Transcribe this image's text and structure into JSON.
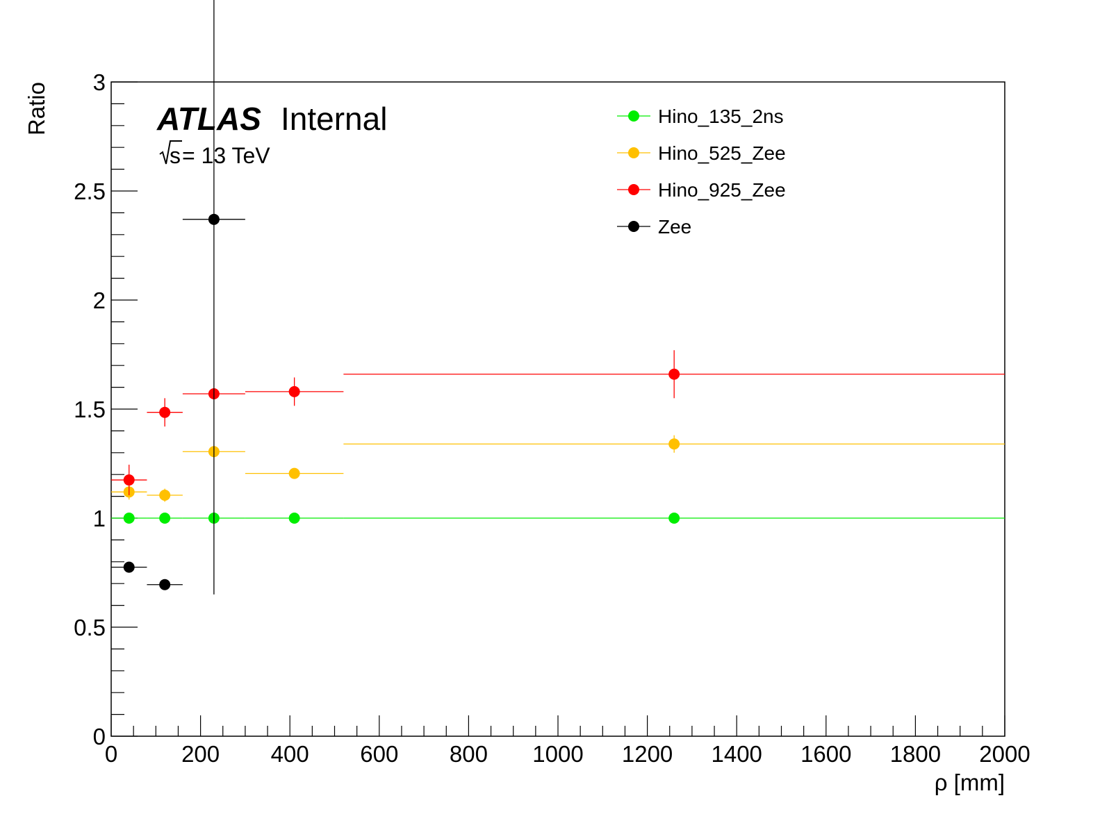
{
  "chart_data": {
    "type": "scatter",
    "xlabel": "ρ [mm]",
    "ylabel": "Ratio",
    "xlim": [
      0,
      2000
    ],
    "ylim": [
      0,
      3
    ],
    "x_ticks": [
      "0",
      "200",
      "400",
      "600",
      "800",
      "1000",
      "1200",
      "1400",
      "1600",
      "1800",
      "2000"
    ],
    "y_ticks": [
      "0",
      "0.5",
      "1",
      "1.5",
      "2",
      "2.5",
      "3"
    ],
    "grid": false,
    "legend_position": "top-right",
    "annotations": {
      "experiment": "ATLAS",
      "status": "Internal",
      "energy_sqrt": "s",
      "energy_rest": " = 13 TeV"
    },
    "series": [
      {
        "name": "Hino_135_2ns",
        "color": "#00ee00",
        "points": [
          {
            "x": 40,
            "xlo": 0,
            "xhi": 80,
            "y": 1.0,
            "yerr": 0.0
          },
          {
            "x": 120,
            "xlo": 80,
            "xhi": 160,
            "y": 1.0,
            "yerr": 0.0
          },
          {
            "x": 230,
            "xlo": 160,
            "xhi": 300,
            "y": 1.0,
            "yerr": 0.0
          },
          {
            "x": 410,
            "xlo": 300,
            "xhi": 520,
            "y": 1.0,
            "yerr": 0.0
          },
          {
            "x": 1260,
            "xlo": 520,
            "xhi": 2000,
            "y": 1.0,
            "yerr": 0.0
          }
        ]
      },
      {
        "name": "Hino_525_Zee",
        "color": "#ffc000",
        "points": [
          {
            "x": 40,
            "xlo": 0,
            "xhi": 80,
            "y": 1.12,
            "yerr": 0.035
          },
          {
            "x": 120,
            "xlo": 80,
            "xhi": 160,
            "y": 1.105,
            "yerr": 0.03
          },
          {
            "x": 230,
            "xlo": 160,
            "xhi": 300,
            "y": 1.305,
            "yerr": 0.0
          },
          {
            "x": 410,
            "xlo": 300,
            "xhi": 520,
            "y": 1.205,
            "yerr": 0.0
          },
          {
            "x": 1260,
            "xlo": 520,
            "xhi": 2000,
            "y": 1.34,
            "yerr": 0.04
          }
        ]
      },
      {
        "name": "Hino_925_Zee",
        "color": "#ff0000",
        "points": [
          {
            "x": 40,
            "xlo": 0,
            "xhi": 80,
            "y": 1.175,
            "yerr": 0.07
          },
          {
            "x": 120,
            "xlo": 80,
            "xhi": 160,
            "y": 1.485,
            "yerr": 0.065
          },
          {
            "x": 230,
            "xlo": 160,
            "xhi": 300,
            "y": 1.57,
            "yerr": 0.0
          },
          {
            "x": 410,
            "xlo": 300,
            "xhi": 520,
            "y": 1.58,
            "yerr": 0.065
          },
          {
            "x": 1260,
            "xlo": 520,
            "xhi": 2000,
            "y": 1.66,
            "yerr": 0.11
          }
        ]
      },
      {
        "name": "Zee",
        "color": "#000000",
        "points": [
          {
            "x": 40,
            "xlo": 0,
            "xhi": 80,
            "y": 0.775,
            "yerr": 0.0
          },
          {
            "x": 120,
            "xlo": 80,
            "xhi": 160,
            "y": 0.695,
            "yerr": 0.0
          },
          {
            "x": 230,
            "xlo": 160,
            "xhi": 300,
            "y": 2.37,
            "yerr": 1.72
          }
        ]
      }
    ]
  }
}
